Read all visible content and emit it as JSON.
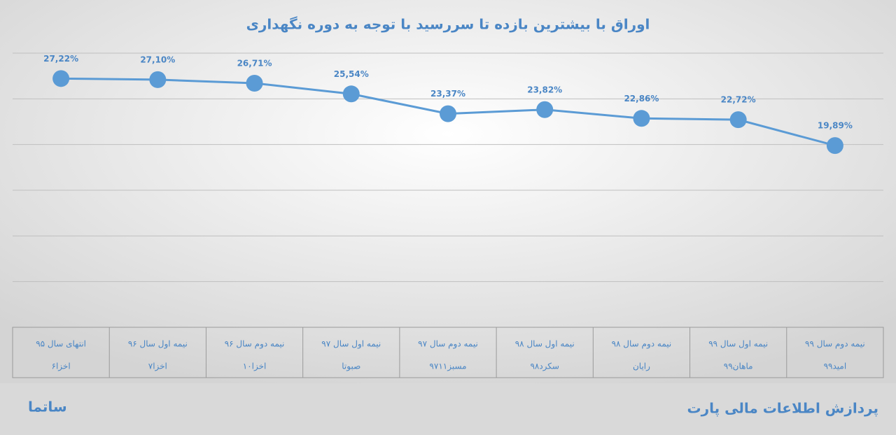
{
  "chart_data": {
    "type": "line",
    "title": "اوراق با بیشترین بازده تا سررسید با توجه به دوره نگهداری",
    "categories": [
      "انتهای سال ۹۵",
      "نیمه اول سال ۹۶",
      "نیمه دوم سال ۹۶",
      "نیمه اول سال ۹۷",
      "نیمه دوم سال ۹۷",
      "نیمه اول سال ۹۸",
      "نیمه دوم سال ۹۸",
      "نیمه اول سال ۹۹",
      "نیمه دوم سال ۹۹"
    ],
    "symbols": [
      "اخزا۶",
      "اخزا۷",
      "اخزا۱۰",
      "صبوتا",
      "مسبز۹۷۱۱",
      "سکرد۹۸",
      "رایان",
      "ماهان۹۹",
      "امید۹۹"
    ],
    "values": [
      27.22,
      27.1,
      26.71,
      25.54,
      23.37,
      23.82,
      22.86,
      22.72,
      19.89
    ],
    "value_labels": [
      "27,22%",
      "27,10%",
      "26,71%",
      "25,54%",
      "23,37%",
      "23,82%",
      "22,86%",
      "22,72%",
      "19,89%"
    ],
    "color": "#5b9bd5",
    "ylim": [
      0,
      30
    ],
    "yticks": [
      0,
      5,
      10,
      15,
      20,
      25,
      30
    ],
    "grid": true
  },
  "footer": {
    "left": "ساتما",
    "right": "پردازش اطلاعات مالی پارت"
  }
}
